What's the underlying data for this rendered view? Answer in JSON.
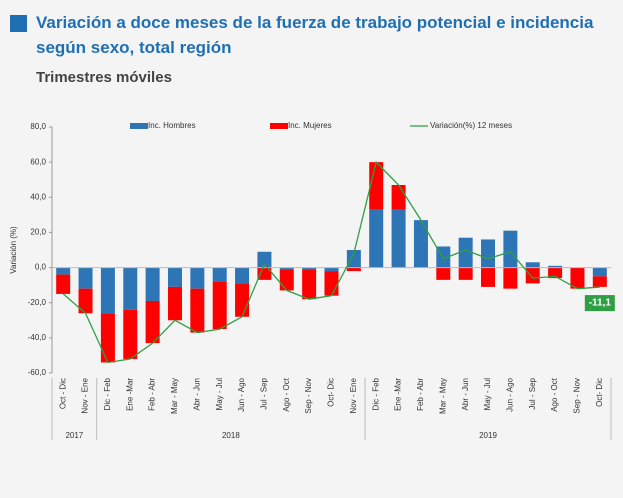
{
  "chart_data": {
    "type": "bar",
    "title": "Variación a doce meses de la fuerza de trabajo potencial e incidencia según sexo, total región",
    "subtitle": "Trimestres móviles",
    "y_label": "Variación (%)",
    "categories": [
      "Oct - Dic",
      "Nov - Ene",
      "Dic - Feb",
      "Ene -Mar",
      "Feb - Abr",
      "Mar - May",
      "Abr - Jun",
      "May - Jul",
      "Jun - Ago",
      "Jul - Sep",
      "Ago - Oct",
      "Sep - Nov",
      "Oct- Dic",
      "Nov - Ene",
      "Dic - Feb",
      "Ene -Mar",
      "Feb - Abr",
      "Mar - May",
      "Abr - Jun",
      "May - Jul",
      "Jun - Ago",
      "Jul - Sep",
      "Ago - Oct",
      "Sep - Nov",
      "Oct- Dic"
    ],
    "category_groups": [
      {
        "name": "2017",
        "count": 2
      },
      {
        "name": "2018",
        "count": 12
      },
      {
        "name": "2019",
        "count": 11
      }
    ],
    "series": [
      {
        "name": "Inc. Hombres",
        "type": "bar",
        "color": "#2e75b6",
        "values": [
          -4,
          -12,
          -26,
          -24,
          -19,
          -11,
          -12,
          -8,
          -9,
          9,
          -1,
          -1,
          -2,
          10,
          33,
          33,
          27,
          12,
          17,
          16,
          21,
          3,
          1,
          0,
          -5
        ]
      },
      {
        "name": "Inc. Mujeres",
        "type": "bar",
        "color": "#ff0000",
        "values": [
          -11,
          -14,
          -28,
          -28,
          -24,
          -19,
          -25,
          -27,
          -19,
          -7,
          -12,
          -17,
          -14,
          -2,
          27,
          14,
          0,
          -7,
          -7,
          -11,
          -12,
          -9,
          -6,
          -12,
          -6
        ]
      },
      {
        "name": "Variación(%) 12 meses",
        "type": "line",
        "color": "#2ea043",
        "values": [
          -15,
          -26,
          -54,
          -52,
          -43,
          -30,
          -37,
          -35,
          -28,
          2,
          -13,
          -18,
          -16,
          8,
          60,
          47,
          27,
          5,
          10,
          5,
          9,
          -6,
          -5,
          -12,
          -11.1
        ],
        "value_labels": [
          null,
          null,
          null,
          null,
          null,
          null,
          null,
          null,
          null,
          null,
          null,
          null,
          null,
          null,
          null,
          null,
          null,
          null,
          null,
          null,
          null,
          null,
          null,
          null,
          "-11,1"
        ]
      }
    ],
    "ylim": [
      -60,
      80
    ],
    "yticks": [
      {
        "value": -60,
        "label": "-60,0"
      },
      {
        "value": -40,
        "label": "-40,0"
      },
      {
        "value": -20,
        "label": "-20,0"
      },
      {
        "value": 0,
        "label": "0,0"
      },
      {
        "value": 20,
        "label": "20,0"
      },
      {
        "value": 40,
        "label": "40,0"
      },
      {
        "value": 60,
        "label": "60,0"
      },
      {
        "value": 80,
        "label": "80,0"
      }
    ],
    "grid": false,
    "legend": "top"
  }
}
